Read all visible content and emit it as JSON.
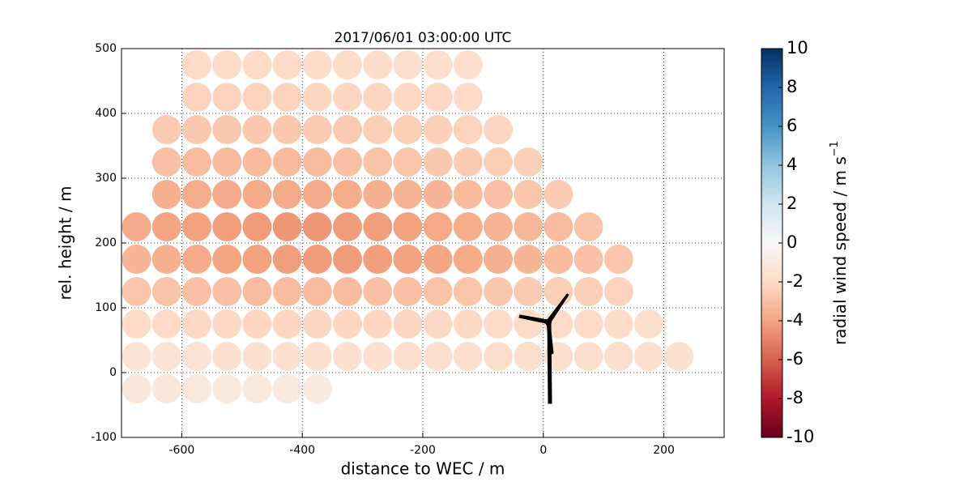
{
  "chart_data": {
    "type": "scatter",
    "title": "2017/06/01 03:00:00 UTC",
    "x_label": "distance to WEC / m",
    "y_label": "rel. height / m",
    "xlim": [
      -700,
      300
    ],
    "xticks": [
      -600,
      -400,
      -200,
      0,
      200
    ],
    "ylim": [
      -100,
      500
    ],
    "yticks": [
      -100,
      0,
      100,
      200,
      300,
      400,
      500
    ],
    "grid": true,
    "colorbar": {
      "label": "radial wind speed / m s",
      "label_superscript": "−1",
      "clim": [
        -10,
        10
      ],
      "ticks": [
        -10,
        -8,
        -6,
        -4,
        -2,
        0,
        2,
        4,
        6,
        8,
        10
      ],
      "colormap": [
        "#67001f",
        "#b2182b",
        "#d6604d",
        "#f4a582",
        "#fddbc7",
        "#f7f7f7",
        "#d1e5f0",
        "#92c5de",
        "#4393c3",
        "#2166ac",
        "#053061"
      ]
    },
    "x": [
      -675,
      -625,
      -575,
      -525,
      -475,
      -425,
      -375,
      -675,
      -625,
      -575,
      -525,
      -475,
      -425,
      -375,
      -325,
      -275,
      -225,
      -175,
      -125,
      -75,
      -25,
      25,
      75,
      125,
      175,
      225,
      -675,
      -625,
      -575,
      -525,
      -475,
      -425,
      -375,
      -325,
      -275,
      -225,
      -175,
      -125,
      -75,
      -25,
      25,
      75,
      125,
      175,
      -675,
      -625,
      -575,
      -525,
      -475,
      -425,
      -375,
      -325,
      -275,
      -225,
      -175,
      -125,
      -75,
      -25,
      25,
      75,
      125,
      -675,
      -625,
      -575,
      -525,
      -475,
      -425,
      -375,
      -325,
      -275,
      -225,
      -175,
      -125,
      -75,
      -25,
      25,
      75,
      125,
      -675,
      -625,
      -575,
      -525,
      -475,
      -425,
      -375,
      -325,
      -275,
      -225,
      -175,
      -125,
      -75,
      -25,
      25,
      75,
      -625,
      -575,
      -525,
      -475,
      -425,
      -375,
      -325,
      -275,
      -225,
      -175,
      -125,
      -75,
      -25,
      25,
      -625,
      -575,
      -525,
      -475,
      -425,
      -375,
      -325,
      -275,
      -225,
      -175,
      -125,
      -75,
      -25,
      -625,
      -575,
      -525,
      -475,
      -425,
      -375,
      -325,
      -275,
      -225,
      -175,
      -125,
      -75,
      -575,
      -525,
      -475,
      -425,
      -375,
      -325,
      -275,
      -225,
      -175,
      -125,
      -575,
      -525,
      -475,
      -425,
      -375,
      -325,
      -275,
      -225,
      -175,
      -125
    ],
    "y": [
      -25,
      -25,
      -25,
      -25,
      -25,
      -25,
      -25,
      25,
      25,
      25,
      25,
      25,
      25,
      25,
      25,
      25,
      25,
      25,
      25,
      25,
      25,
      25,
      25,
      25,
      25,
      25,
      75,
      75,
      75,
      75,
      75,
      75,
      75,
      75,
      75,
      75,
      75,
      75,
      75,
      75,
      75,
      75,
      75,
      75,
      125,
      125,
      125,
      125,
      125,
      125,
      125,
      125,
      125,
      125,
      125,
      125,
      125,
      125,
      125,
      125,
      125,
      175,
      175,
      175,
      175,
      175,
      175,
      175,
      175,
      175,
      175,
      175,
      175,
      175,
      175,
      175,
      175,
      175,
      225,
      225,
      225,
      225,
      225,
      225,
      225,
      225,
      225,
      225,
      225,
      225,
      225,
      225,
      225,
      225,
      275,
      275,
      275,
      275,
      275,
      275,
      275,
      275,
      275,
      275,
      275,
      275,
      275,
      275,
      325,
      325,
      325,
      325,
      325,
      325,
      325,
      325,
      325,
      325,
      325,
      325,
      325,
      375,
      375,
      375,
      375,
      375,
      375,
      375,
      375,
      375,
      375,
      375,
      375,
      425,
      425,
      425,
      425,
      425,
      425,
      425,
      425,
      425,
      425,
      475,
      475,
      475,
      475,
      475,
      475,
      475,
      475,
      475,
      475
    ],
    "c": [
      -1.2,
      -1.2,
      -1.1,
      -1.1,
      -1.1,
      -1.0,
      -1.0,
      -1.5,
      -1.5,
      -1.5,
      -1.6,
      -1.6,
      -1.6,
      -1.6,
      -1.6,
      -1.7,
      -1.7,
      -1.7,
      -1.7,
      -1.8,
      -1.8,
      -1.8,
      -1.8,
      -1.8,
      -1.7,
      -1.6,
      -2.0,
      -2.0,
      -2.1,
      -2.1,
      -2.2,
      -2.2,
      -2.2,
      -2.2,
      -2.2,
      -2.2,
      -2.1,
      -2.1,
      -2.0,
      -2.0,
      -2.0,
      -2.0,
      -1.9,
      -1.8,
      -2.8,
      -2.9,
      -3.0,
      -3.0,
      -3.1,
      -3.1,
      -3.1,
      -3.1,
      -3.0,
      -3.0,
      -2.9,
      -2.8,
      -2.7,
      -2.6,
      -2.5,
      -2.4,
      -2.3,
      -3.4,
      -3.6,
      -3.8,
      -4.0,
      -4.1,
      -4.2,
      -4.3,
      -4.3,
      -4.2,
      -4.1,
      -4.0,
      -3.8,
      -3.6,
      -3.4,
      -3.2,
      -3.0,
      -2.8,
      -3.8,
      -4.0,
      -4.1,
      -4.2,
      -4.3,
      -4.4,
      -4.4,
      -4.3,
      -4.2,
      -4.1,
      -3.9,
      -3.7,
      -3.5,
      -3.3,
      -3.1,
      -2.9,
      -3.6,
      -3.7,
      -3.8,
      -3.8,
      -3.8,
      -3.8,
      -3.7,
      -3.6,
      -3.5,
      -3.4,
      -3.2,
      -3.0,
      -2.8,
      -2.6,
      -3.0,
      -3.1,
      -3.2,
      -3.2,
      -3.2,
      -3.1,
      -3.0,
      -2.9,
      -2.8,
      -2.7,
      -2.6,
      -2.5,
      -2.4,
      -2.6,
      -2.7,
      -2.7,
      -2.7,
      -2.7,
      -2.6,
      -2.6,
      -2.5,
      -2.5,
      -2.4,
      -2.3,
      -2.2,
      -2.3,
      -2.3,
      -2.3,
      -2.3,
      -2.2,
      -2.2,
      -2.2,
      -2.1,
      -2.1,
      -2.0,
      -2.0,
      -2.0,
      -2.0,
      -2.0,
      -1.9,
      -1.9,
      -1.9,
      -1.8,
      -1.8,
      -1.8
    ]
  }
}
